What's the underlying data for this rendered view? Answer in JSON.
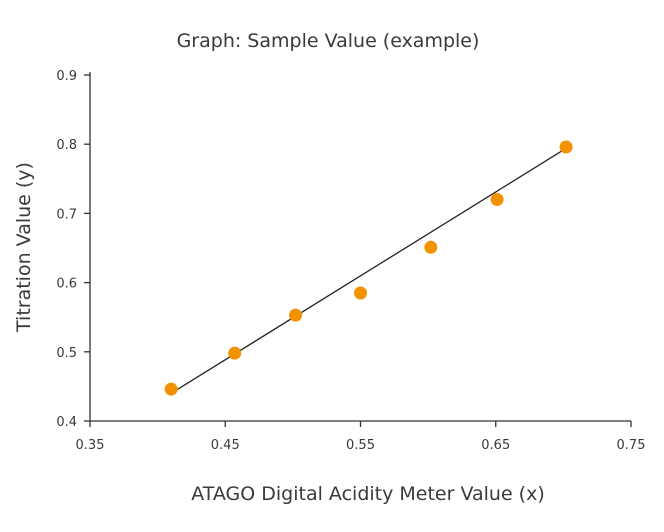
{
  "chart_data": {
    "type": "scatter",
    "title": "Graph: Sample Value (example)",
    "xlabel": "ATAGO Digital Acidity Meter Value (x)",
    "ylabel": "Titration Value (y)",
    "xlim": [
      0.35,
      0.75
    ],
    "ylim": [
      0.4,
      0.9
    ],
    "xticks": [
      "0.35",
      "0.45",
      "0.55",
      "0.65",
      "0.75"
    ],
    "yticks": [
      "0.4",
      "0.5",
      "0.6",
      "0.7",
      "0.8",
      "0.9"
    ],
    "grid": false,
    "legend": "none",
    "points": [
      {
        "x": 0.41,
        "y": 0.446
      },
      {
        "x": 0.457,
        "y": 0.498
      },
      {
        "x": 0.502,
        "y": 0.553
      },
      {
        "x": 0.55,
        "y": 0.585
      },
      {
        "x": 0.602,
        "y": 0.651
      },
      {
        "x": 0.651,
        "y": 0.72
      },
      {
        "x": 0.702,
        "y": 0.796
      }
    ],
    "trendline": {
      "x": [
        0.41,
        0.702
      ],
      "y": [
        0.44,
        0.794
      ]
    },
    "marker_color": "#f39200",
    "line_color": "#222222",
    "axis_color": "#333333"
  }
}
